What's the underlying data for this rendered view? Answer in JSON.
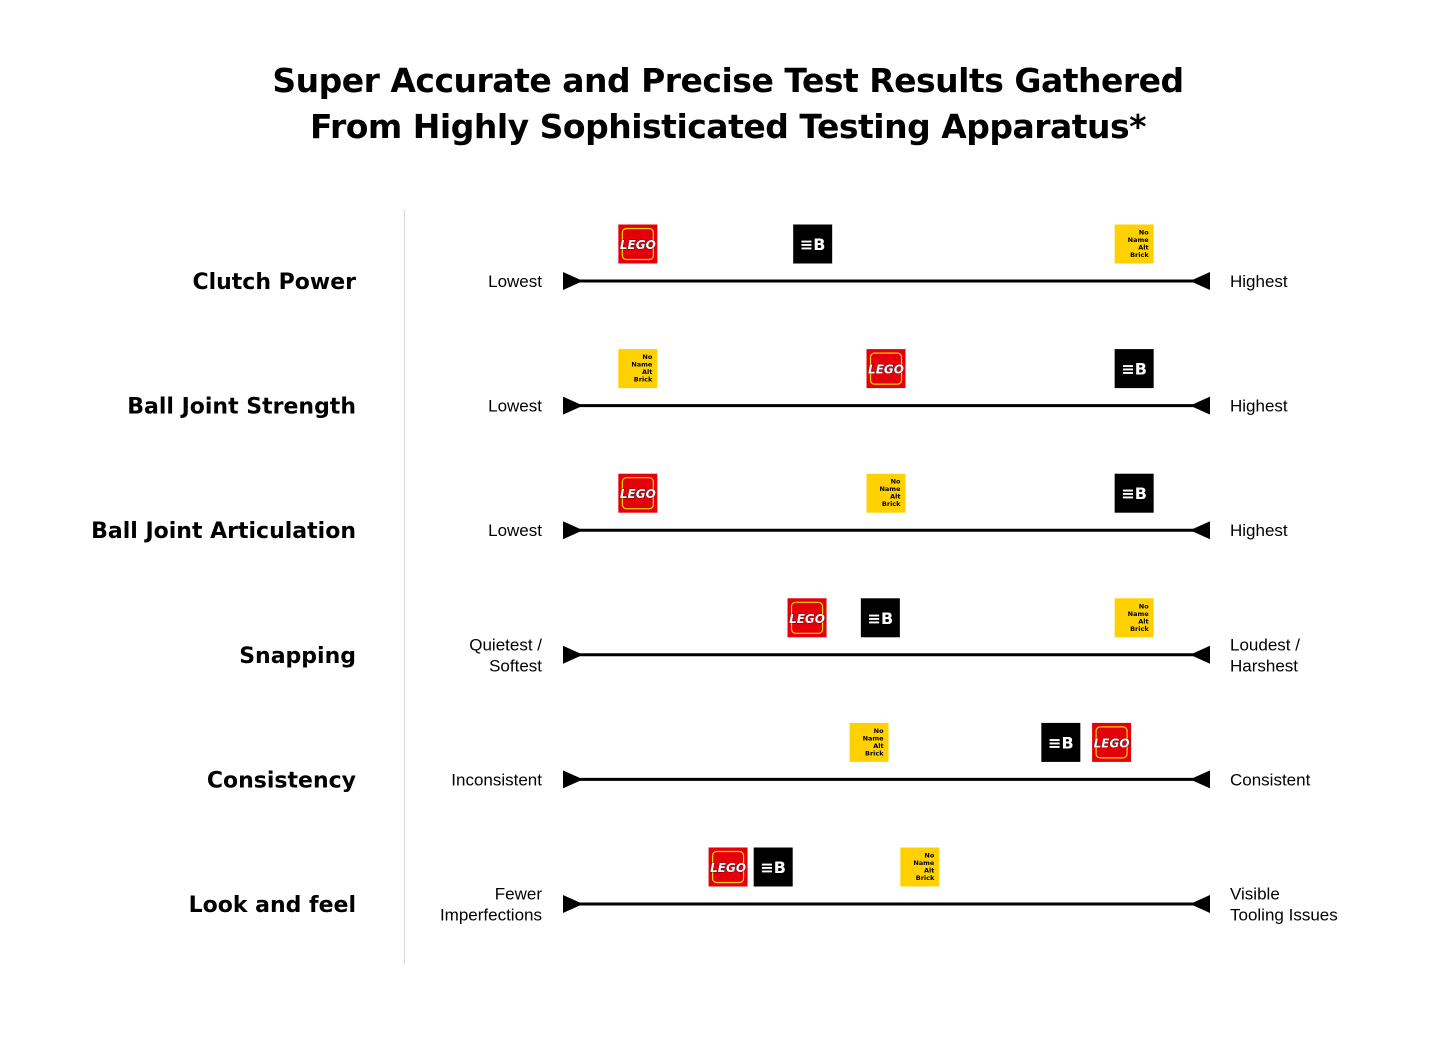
{
  "title": {
    "line1": "Super Accurate and Precise Test Results Gathered",
    "line2": "From Highly Sophisticated Testing Apparatus*"
  },
  "brands": {
    "lego": {
      "label": "LEGO",
      "color": "#e3000b",
      "text_color": "#ffffff",
      "outline": "#ffd500"
    },
    "eb": {
      "label": "≡B",
      "color": "#000000",
      "text_color": "#ffffff"
    },
    "noname": {
      "label": [
        "No",
        "Name",
        "Alt",
        "Brick"
      ],
      "color": "#ffd100",
      "text_color": "#000000"
    }
  },
  "chart_data": {
    "type": "scatter",
    "scale": [
      0,
      100
    ],
    "rows": [
      {
        "name": "Clutch Power",
        "low_label": [
          "Lowest"
        ],
        "high_label": [
          "Highest"
        ],
        "positions": {
          "lego": 6,
          "eb": 37,
          "noname": 94
        }
      },
      {
        "name": "Ball Joint Strength",
        "low_label": [
          "Lowest"
        ],
        "high_label": [
          "Highest"
        ],
        "positions": {
          "noname": 6,
          "lego": 50,
          "eb": 94
        }
      },
      {
        "name": "Ball Joint Articulation",
        "low_label": [
          "Lowest"
        ],
        "high_label": [
          "Highest"
        ],
        "positions": {
          "lego": 6,
          "noname": 50,
          "eb": 94
        }
      },
      {
        "name": "Snapping",
        "low_label": [
          "Quietest /",
          "Softest"
        ],
        "high_label": [
          "Loudest /",
          "Harshest"
        ],
        "positions": {
          "lego": 36,
          "eb": 49,
          "noname": 94
        }
      },
      {
        "name": "Consistency",
        "low_label": [
          "Inconsistent"
        ],
        "high_label": [
          "Consistent"
        ],
        "positions": {
          "noname": 47,
          "eb": 81,
          "lego": 90
        }
      },
      {
        "name": "Look and feel",
        "low_label": [
          "Fewer",
          "Imperfections"
        ],
        "high_label": [
          "Visible",
          "Tooling Issues"
        ],
        "positions": {
          "lego": 22,
          "eb": 30,
          "noname": 56
        }
      }
    ]
  }
}
